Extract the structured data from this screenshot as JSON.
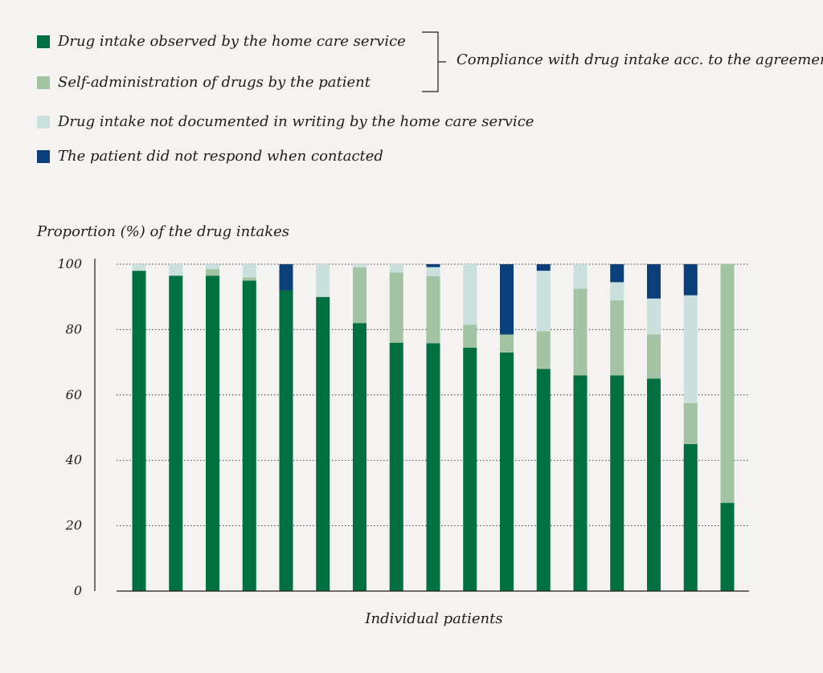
{
  "legend": [
    {
      "label": "Drug intake observed by the home care service",
      "color": "#007041"
    },
    {
      "label": "Self-administration of drugs by the patient",
      "color": "#a3c4a2"
    },
    {
      "label": "Drug intake not documented in writing by the home care service",
      "color": "#c9e0dd"
    },
    {
      "label": "The patient did not respond when contacted",
      "color": "#0b3f7c"
    }
  ],
  "brace_label": "Compliance with drug intake acc. to the agreement",
  "chart_data": {
    "type": "bar",
    "stacked": true,
    "ylabel": "Proportion (%) of the drug intakes",
    "xlabel": "Individual patients",
    "ylim": [
      0,
      100
    ],
    "yticks": [
      0,
      20,
      40,
      60,
      80,
      100
    ],
    "grid": "horizontal dotted",
    "categories": [
      "",
      "",
      "",
      "",
      "",
      "",
      "",
      "",
      "",
      "",
      "",
      "",
      "",
      "",
      "",
      "",
      ""
    ],
    "series": [
      {
        "name": "Drug intake observed by the home care service",
        "color": "#007041",
        "values": [
          98,
          96.5,
          96.5,
          95,
          92,
          90,
          82,
          76,
          75.8,
          74.5,
          73,
          68,
          66,
          66,
          65,
          45,
          27
        ]
      },
      {
        "name": "Self-administration of drugs by the patient",
        "color": "#a3c4a2",
        "values": [
          0,
          0,
          2,
          1,
          0,
          0,
          17,
          21.5,
          20.5,
          7,
          5.5,
          11.5,
          26.5,
          23,
          13.5,
          12.5,
          73
        ]
      },
      {
        "name": "Drug intake not documented in writing by the home care service",
        "color": "#c9e0dd",
        "values": [
          2,
          3.5,
          1.5,
          4,
          0,
          10,
          1,
          2.5,
          2.8,
          18.5,
          0,
          18.5,
          7.5,
          5.5,
          11,
          33,
          0
        ]
      },
      {
        "name": "The patient did not respond when contacted",
        "color": "#0b3f7c",
        "values": [
          0,
          0,
          0,
          0,
          8,
          0,
          0,
          0,
          0.9,
          0,
          21.5,
          2,
          0,
          5.5,
          10.5,
          9.5,
          0
        ]
      }
    ]
  }
}
